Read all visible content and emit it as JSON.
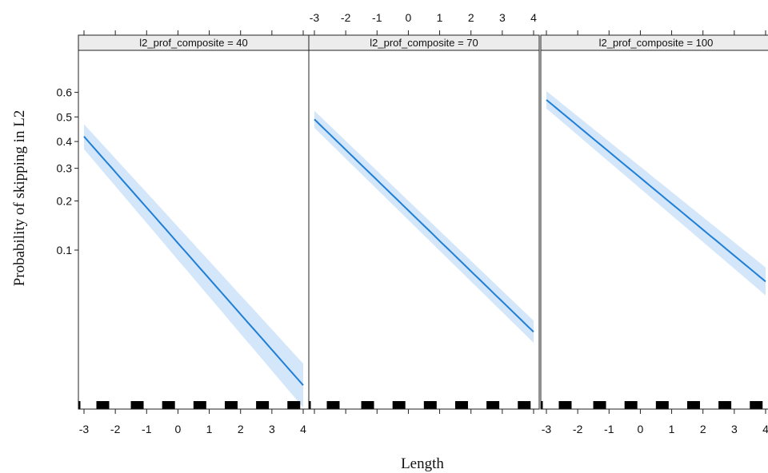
{
  "chart_data": {
    "type": "line",
    "xlabel": "Length",
    "ylabel": "Probability of skipping in L2",
    "y_scale": "logit",
    "xlim": [
      -3,
      4
    ],
    "ylim": [
      0.008,
      0.75
    ],
    "x_ticks": [
      -3,
      -2,
      -1,
      0,
      1,
      2,
      3,
      4
    ],
    "y_ticks": [
      0.1,
      0.2,
      0.3,
      0.4,
      0.5,
      0.6
    ],
    "y_tick_labels": [
      "0.1",
      "0.2",
      "0.3",
      "0.4",
      "0.5",
      "0.6"
    ],
    "line_color": "#1f7fd6",
    "band_color": "#cfe3f8",
    "rug_x": [
      -2.4,
      -1.3,
      -0.3,
      0.7,
      1.7,
      2.7,
      3.7
    ],
    "panels": [
      {
        "strip": "l2_prof_composite = 40",
        "x": [
          -3,
          4
        ],
        "y": [
          0.42,
          0.0118
        ],
        "ci_lower": [
          0.37,
          0.0082
        ],
        "ci_upper": [
          0.47,
          0.0168
        ]
      },
      {
        "strip": "l2_prof_composite = 70",
        "x": [
          -3,
          4
        ],
        "y": [
          0.49,
          0.028
        ],
        "ci_lower": [
          0.455,
          0.0235
        ],
        "ci_upper": [
          0.525,
          0.0335
        ]
      },
      {
        "strip": "l2_prof_composite = 100",
        "x": [
          -3,
          4
        ],
        "y": [
          0.57,
          0.062
        ],
        "ci_lower": [
          0.535,
          0.05
        ],
        "ci_upper": [
          0.605,
          0.077
        ]
      }
    ]
  }
}
